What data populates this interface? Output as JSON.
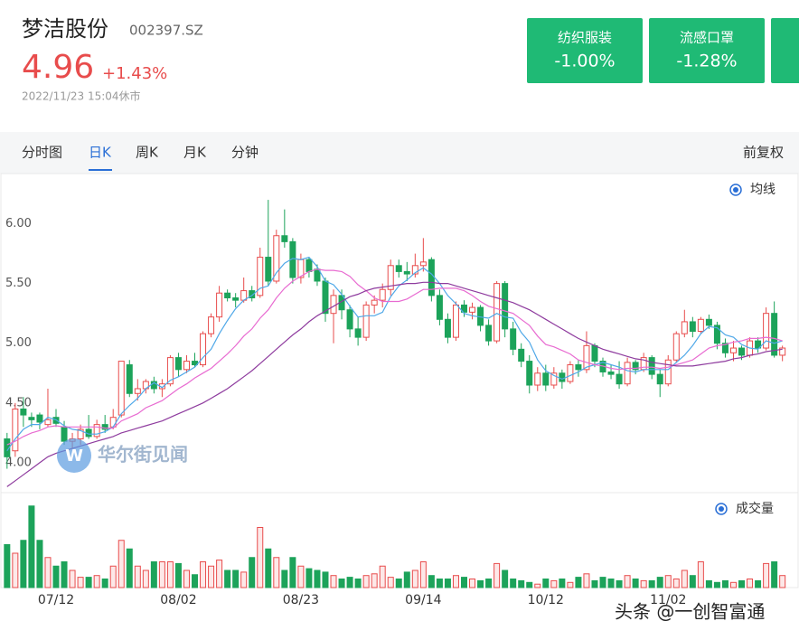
{
  "quote": {
    "name": "梦洁股份",
    "code": "002397.SZ",
    "price": 4.96,
    "change": "+1.43%",
    "time": "2022/11/23 15:04休市"
  },
  "sectors": [
    {
      "name": "纺织服装",
      "change": "-1.00%"
    },
    {
      "name": "流感口罩",
      "change": "-1.28%"
    }
  ],
  "tabs": [
    "分时图",
    "日K",
    "周K",
    "月K",
    "分钟"
  ],
  "adjust": "前复权",
  "watermark": "华尔街见闻",
  "footer": "头条 @一创智富通",
  "chart_data": {
    "type": "candlestick",
    "ylim": [
      3.75,
      6.42
    ],
    "yticks": [
      {
        "value": 4,
        "label": "4.00"
      },
      {
        "value": 4.5,
        "label": "4.50"
      },
      {
        "value": 5,
        "label": "5.00"
      },
      {
        "value": 5.5,
        "label": "5.50"
      },
      {
        "value": 6,
        "label": "6.00"
      }
    ],
    "grid": false,
    "up_color": "#e84c4c",
    "down_color": "#1ca35a",
    "ma_legend": "均线",
    "categories": [
      null,
      null,
      null,
      null,
      null,
      null,
      "07/12",
      null,
      null,
      null,
      null,
      null,
      null,
      null,
      null,
      null,
      null,
      null,
      null,
      null,
      null,
      "08/02",
      null,
      null,
      null,
      null,
      null,
      null,
      null,
      null,
      null,
      null,
      null,
      null,
      null,
      null,
      "08/23",
      null,
      null,
      null,
      null,
      null,
      null,
      null,
      null,
      null,
      null,
      null,
      null,
      null,
      null,
      "09/14",
      null,
      null,
      null,
      null,
      null,
      null,
      null,
      null,
      null,
      null,
      null,
      null,
      null,
      null,
      "10/12",
      null,
      null,
      null,
      null,
      null,
      null,
      null,
      null,
      null,
      null,
      null,
      null,
      null,
      null,
      "11/02",
      null,
      null,
      null,
      null,
      null,
      null,
      null,
      null,
      null,
      null,
      null,
      null,
      null,
      null
    ],
    "ohlc": [
      [
        4.2,
        4.25,
        3.95,
        4.05
      ],
      [
        4.1,
        4.5,
        4.05,
        4.45
      ],
      [
        4.45,
        4.55,
        4.3,
        4.4
      ],
      [
        4.38,
        4.42,
        4.3,
        4.36
      ],
      [
        4.4,
        4.42,
        4.28,
        4.34
      ],
      [
        4.32,
        4.62,
        4.3,
        4.36
      ],
      [
        4.38,
        4.45,
        4.3,
        4.33
      ],
      [
        4.3,
        4.35,
        4.15,
        4.18
      ],
      [
        4.18,
        4.25,
        4.12,
        4.2
      ],
      [
        4.2,
        4.32,
        4.15,
        4.28
      ],
      [
        4.28,
        4.4,
        4.2,
        4.22
      ],
      [
        4.22,
        4.36,
        4.2,
        4.32
      ],
      [
        4.32,
        4.4,
        4.25,
        4.28
      ],
      [
        4.3,
        4.45,
        4.28,
        4.38
      ],
      [
        4.4,
        4.85,
        4.38,
        4.85
      ],
      [
        4.82,
        4.86,
        4.55,
        4.58
      ],
      [
        4.58,
        4.7,
        4.52,
        4.62
      ],
      [
        4.62,
        4.7,
        4.58,
        4.68
      ],
      [
        4.68,
        4.72,
        4.58,
        4.62
      ],
      [
        4.62,
        4.7,
        4.55,
        4.66
      ],
      [
        4.66,
        4.9,
        4.64,
        4.88
      ],
      [
        4.88,
        4.92,
        4.72,
        4.78
      ],
      [
        4.78,
        4.9,
        4.75,
        4.85
      ],
      [
        4.85,
        4.92,
        4.8,
        4.82
      ],
      [
        4.82,
        5.1,
        4.8,
        5.08
      ],
      [
        5.08,
        5.25,
        5.05,
        5.22
      ],
      [
        5.22,
        5.48,
        5.18,
        5.42
      ],
      [
        5.42,
        5.45,
        5.35,
        5.38
      ],
      [
        5.38,
        5.42,
        5.3,
        5.36
      ],
      [
        5.36,
        5.55,
        5.34,
        5.44
      ],
      [
        5.44,
        5.48,
        5.35,
        5.38
      ],
      [
        5.4,
        5.8,
        5.38,
        5.72
      ],
      [
        5.72,
        6.2,
        5.48,
        5.52
      ],
      [
        5.52,
        5.95,
        5.5,
        5.9
      ],
      [
        5.9,
        6.12,
        5.8,
        5.85
      ],
      [
        5.85,
        5.88,
        5.5,
        5.55
      ],
      [
        5.55,
        5.75,
        5.5,
        5.7
      ],
      [
        5.7,
        5.72,
        5.55,
        5.6
      ],
      [
        5.62,
        5.66,
        5.48,
        5.52
      ],
      [
        5.52,
        5.55,
        5.18,
        5.25
      ],
      [
        5.25,
        5.45,
        5.0,
        5.4
      ],
      [
        5.4,
        5.45,
        5.2,
        5.28
      ],
      [
        5.28,
        5.32,
        5.05,
        5.12
      ],
      [
        5.12,
        5.22,
        4.98,
        5.05
      ],
      [
        5.05,
        5.35,
        5.02,
        5.32
      ],
      [
        5.32,
        5.4,
        5.25,
        5.36
      ],
      [
        5.36,
        5.5,
        5.3,
        5.45
      ],
      [
        5.45,
        5.7,
        5.4,
        5.65
      ],
      [
        5.65,
        5.7,
        5.55,
        5.6
      ],
      [
        5.6,
        5.68,
        5.52,
        5.58
      ],
      [
        5.58,
        5.75,
        5.55,
        5.65
      ],
      [
        5.65,
        5.88,
        5.6,
        5.68
      ],
      [
        5.7,
        5.72,
        5.35,
        5.4
      ],
      [
        5.4,
        5.45,
        5.15,
        5.2
      ],
      [
        5.2,
        5.25,
        5.0,
        5.05
      ],
      [
        5.05,
        5.35,
        5.02,
        5.32
      ],
      [
        5.32,
        5.36,
        5.22,
        5.26
      ],
      [
        5.26,
        5.34,
        5.2,
        5.3
      ],
      [
        5.3,
        5.32,
        5.1,
        5.15
      ],
      [
        5.15,
        5.2,
        4.98,
        5.02
      ],
      [
        5.02,
        5.52,
        5.0,
        5.5
      ],
      [
        5.5,
        5.52,
        5.05,
        5.12
      ],
      [
        5.12,
        5.18,
        4.9,
        4.95
      ],
      [
        4.95,
        5.0,
        4.8,
        4.85
      ],
      [
        4.85,
        4.9,
        4.58,
        4.65
      ],
      [
        4.65,
        4.8,
        4.6,
        4.75
      ],
      [
        4.75,
        4.82,
        4.6,
        4.65
      ],
      [
        4.65,
        4.8,
        4.62,
        4.75
      ],
      [
        4.75,
        4.78,
        4.62,
        4.68
      ],
      [
        4.68,
        4.85,
        4.66,
        4.82
      ],
      [
        4.82,
        4.86,
        4.72,
        4.78
      ],
      [
        4.78,
        5.1,
        4.75,
        4.98
      ],
      [
        4.98,
        5.0,
        4.8,
        4.85
      ],
      [
        4.85,
        4.88,
        4.72,
        4.76
      ],
      [
        4.76,
        4.82,
        4.7,
        4.74
      ],
      [
        4.74,
        4.85,
        4.62,
        4.66
      ],
      [
        4.66,
        4.88,
        4.64,
        4.84
      ],
      [
        4.84,
        4.86,
        4.74,
        4.78
      ],
      [
        4.78,
        4.92,
        4.76,
        4.88
      ],
      [
        4.88,
        4.9,
        4.7,
        4.74
      ],
      [
        4.74,
        4.78,
        4.55,
        4.66
      ],
      [
        4.66,
        4.9,
        4.64,
        4.86
      ],
      [
        4.86,
        5.1,
        4.84,
        5.08
      ],
      [
        5.08,
        5.28,
        5.05,
        5.18
      ],
      [
        5.18,
        5.22,
        5.05,
        5.1
      ],
      [
        5.1,
        5.22,
        5.08,
        5.2
      ],
      [
        5.2,
        5.24,
        5.12,
        5.15
      ],
      [
        5.15,
        5.18,
        4.95,
        5.0
      ],
      [
        5.0,
        5.04,
        4.88,
        4.92
      ],
      [
        4.92,
        5.02,
        4.85,
        4.96
      ],
      [
        4.96,
        4.98,
        4.86,
        4.9
      ],
      [
        4.9,
        5.05,
        4.88,
        5.02
      ],
      [
        5.02,
        5.05,
        4.92,
        4.96
      ],
      [
        4.96,
        5.3,
        4.94,
        5.25
      ],
      [
        5.25,
        5.35,
        4.88,
        4.9
      ],
      [
        4.9,
        4.98,
        4.85,
        4.96
      ]
    ],
    "series": [
      {
        "color": "#4fa8e8",
        "values": [
          4.1,
          4.2,
          4.28,
          4.32,
          4.32,
          4.38,
          4.36,
          4.31,
          4.28,
          4.27,
          4.24,
          4.24,
          4.26,
          4.3,
          4.41,
          4.48,
          4.54,
          4.62,
          4.67,
          4.63,
          4.69,
          4.72,
          4.76,
          4.8,
          4.88,
          4.95,
          5.08,
          5.19,
          5.29,
          5.36,
          5.4,
          5.46,
          5.48,
          5.59,
          5.67,
          5.71,
          5.7,
          5.72,
          5.64,
          5.52,
          5.49,
          5.41,
          5.31,
          5.22,
          5.23,
          5.23,
          5.26,
          5.39,
          5.48,
          5.53,
          5.59,
          5.63,
          5.58,
          5.5,
          5.4,
          5.33,
          5.25,
          5.23,
          5.22,
          5.21,
          5.25,
          5.22,
          5.21,
          5.09,
          5.01,
          4.86,
          4.77,
          4.73,
          4.7,
          4.73,
          4.76,
          4.8,
          4.82,
          4.84,
          4.82,
          4.8,
          4.77,
          4.76,
          4.78,
          4.78,
          4.78,
          4.78,
          4.84,
          4.9,
          4.98,
          5.08,
          5.14,
          5.13,
          5.07,
          5.05,
          4.99,
          4.96,
          4.95,
          5.02,
          5.0,
          5.02
        ]
      },
      {
        "color": "#e86bd1",
        "values": [
          4.15,
          4.18,
          4.22,
          4.25,
          4.27,
          4.3,
          4.31,
          4.3,
          4.3,
          4.3,
          4.3,
          4.3,
          4.29,
          4.29,
          4.35,
          4.38,
          4.41,
          4.46,
          4.49,
          4.52,
          4.57,
          4.62,
          4.66,
          4.71,
          4.75,
          4.79,
          4.85,
          4.91,
          4.98,
          5.06,
          5.12,
          5.21,
          5.28,
          5.38,
          5.46,
          5.52,
          5.56,
          5.6,
          5.62,
          5.61,
          5.61,
          5.6,
          5.56,
          5.49,
          5.44,
          5.38,
          5.35,
          5.35,
          5.35,
          5.37,
          5.41,
          5.45,
          5.45,
          5.46,
          5.46,
          5.46,
          5.44,
          5.4,
          5.35,
          5.31,
          5.29,
          5.27,
          5.25,
          5.2,
          5.15,
          5.06,
          4.99,
          4.97,
          4.94,
          4.91,
          4.86,
          4.84,
          4.82,
          4.81,
          4.79,
          4.78,
          4.79,
          4.79,
          4.8,
          4.8,
          4.79,
          4.8,
          4.82,
          4.84,
          4.86,
          4.91,
          4.96,
          4.98,
          4.99,
          5.01,
          5.02,
          5.04,
          5.04,
          5.05,
          5.04,
          5.02
        ]
      },
      {
        "color": "#8e3b9e",
        "values": [
          3.8,
          3.85,
          3.9,
          3.95,
          4.0,
          4.05,
          4.08,
          4.1,
          4.12,
          4.14,
          4.16,
          4.18,
          4.2,
          4.22,
          4.25,
          4.27,
          4.29,
          4.31,
          4.33,
          4.35,
          4.38,
          4.41,
          4.44,
          4.47,
          4.5,
          4.54,
          4.58,
          4.62,
          4.67,
          4.72,
          4.77,
          4.83,
          4.89,
          4.95,
          5.01,
          5.07,
          5.12,
          5.18,
          5.23,
          5.27,
          5.31,
          5.35,
          5.39,
          5.41,
          5.44,
          5.46,
          5.47,
          5.48,
          5.49,
          5.5,
          5.5,
          5.51,
          5.51,
          5.5,
          5.5,
          5.48,
          5.46,
          5.44,
          5.42,
          5.4,
          5.38,
          5.36,
          5.34,
          5.31,
          5.28,
          5.24,
          5.2,
          5.16,
          5.12,
          5.08,
          5.04,
          5.01,
          4.98,
          4.95,
          4.93,
          4.91,
          4.89,
          4.87,
          4.86,
          4.84,
          4.83,
          4.82,
          4.81,
          4.81,
          4.81,
          4.82,
          4.83,
          4.84,
          4.85,
          4.87,
          4.88,
          4.9,
          4.91,
          4.93,
          4.94,
          4.95
        ]
      }
    ],
    "volume": {
      "label": "成交量",
      "ylim": [
        0,
        100
      ],
      "values": [
        50,
        40,
        55,
        95,
        55,
        35,
        25,
        30,
        20,
        12,
        12,
        14,
        10,
        25,
        55,
        45,
        25,
        20,
        30,
        30,
        30,
        28,
        20,
        15,
        30,
        25,
        32,
        20,
        20,
        18,
        35,
        70,
        45,
        35,
        20,
        35,
        25,
        22,
        20,
        18,
        14,
        10,
        12,
        10,
        14,
        16,
        25,
        12,
        10,
        18,
        20,
        30,
        14,
        10,
        10,
        14,
        12,
        10,
        8,
        10,
        28,
        20,
        10,
        8,
        6,
        4,
        10,
        8,
        10,
        6,
        12,
        16,
        8,
        12,
        10,
        8,
        14,
        10,
        8,
        8,
        12,
        14,
        10,
        20,
        14,
        30,
        8,
        6,
        8,
        6,
        8,
        10,
        8,
        28,
        30,
        14
      ]
    }
  }
}
